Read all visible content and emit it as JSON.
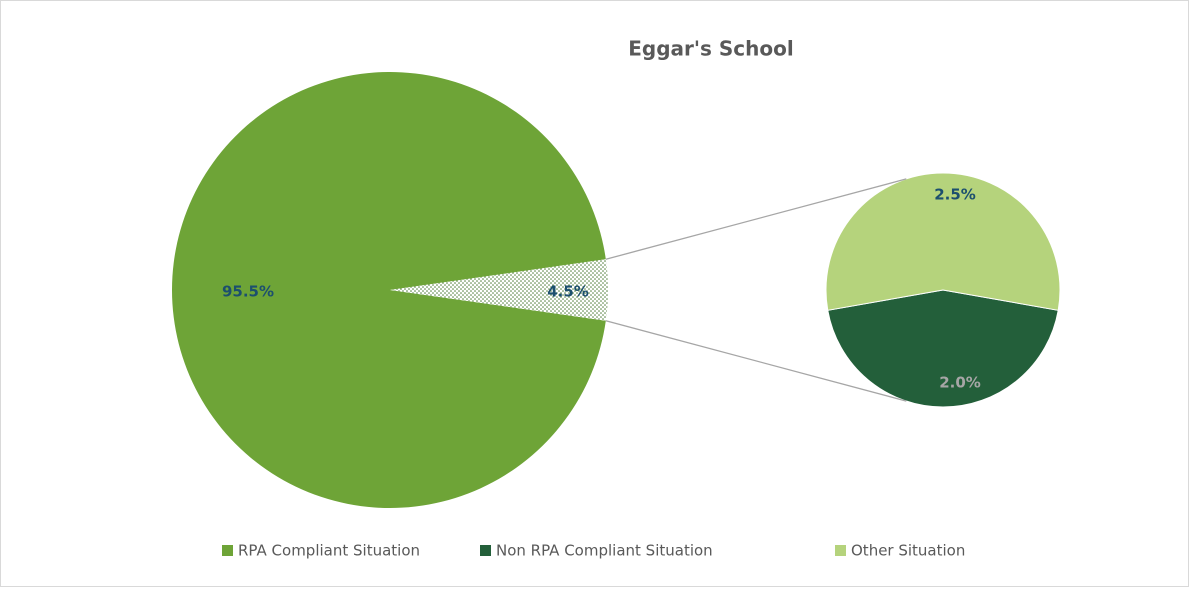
{
  "chart_data": {
    "type": "pie_of_pie",
    "title": "Eggar's School",
    "categories": [
      "RPA Compliant Situation",
      "Non RPA Compliant Situation",
      "Other Situation"
    ],
    "values": [
      95.5,
      2.0,
      2.5
    ],
    "value_labels": [
      "95.5%",
      "2.0%",
      "2.5%"
    ],
    "colors": [
      "#6ea437",
      "#235f3a",
      "#b5d37c"
    ],
    "combined": {
      "value": 4.5,
      "value_label": "4.5%"
    },
    "legend": "bottom"
  }
}
